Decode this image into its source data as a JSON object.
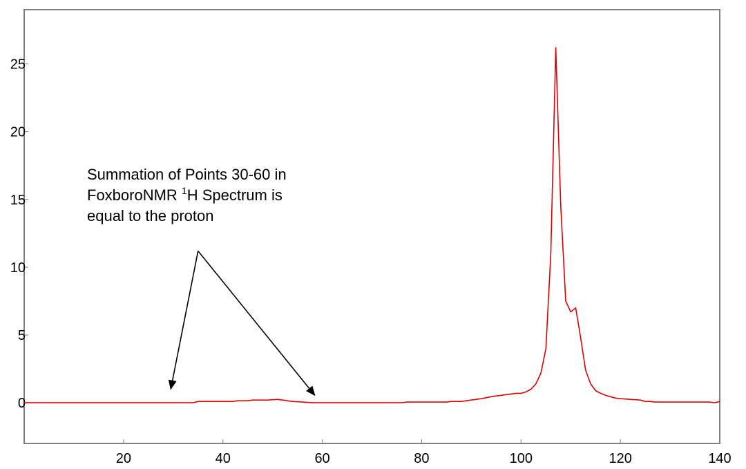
{
  "chart_data": {
    "type": "line",
    "title": "",
    "xlabel": "",
    "ylabel": "",
    "xlim": [
      0,
      140
    ],
    "ylim": [
      -3,
      29
    ],
    "grid": false,
    "x_ticks": [
      {
        "value": 20,
        "label": "20"
      },
      {
        "value": 40,
        "label": "40"
      },
      {
        "value": 60,
        "label": "60"
      },
      {
        "value": 80,
        "label": "80"
      },
      {
        "value": 100,
        "label": "100"
      },
      {
        "value": 120,
        "label": "120"
      },
      {
        "value": 140,
        "label": "140"
      }
    ],
    "y_ticks": [
      {
        "value": 0,
        "label": "0"
      },
      {
        "value": 5,
        "label": "5"
      },
      {
        "value": 10,
        "label": "10"
      },
      {
        "value": 15,
        "label": "15"
      },
      {
        "value": 20,
        "label": "20"
      },
      {
        "value": 25,
        "label": "25"
      }
    ],
    "series": [
      {
        "color": "#e00000",
        "points": [
          [
            0,
            0.0
          ],
          [
            10,
            0.0
          ],
          [
            20,
            0.0
          ],
          [
            30,
            0.0
          ],
          [
            34,
            0.0
          ],
          [
            35,
            0.1
          ],
          [
            40,
            0.1
          ],
          [
            42,
            0.1
          ],
          [
            43,
            0.15
          ],
          [
            45,
            0.15
          ],
          [
            46,
            0.2
          ],
          [
            49,
            0.2
          ],
          [
            51,
            0.25
          ],
          [
            52,
            0.2
          ],
          [
            54,
            0.1
          ],
          [
            56,
            0.05
          ],
          [
            58,
            0.0
          ],
          [
            65,
            0.0
          ],
          [
            70,
            0.0
          ],
          [
            76,
            0.0
          ],
          [
            77,
            0.05
          ],
          [
            80,
            0.05
          ],
          [
            85,
            0.05
          ],
          [
            86,
            0.1
          ],
          [
            88,
            0.1
          ],
          [
            90,
            0.2
          ],
          [
            92,
            0.3
          ],
          [
            94,
            0.45
          ],
          [
            96,
            0.55
          ],
          [
            98,
            0.65
          ],
          [
            99,
            0.7
          ],
          [
            100,
            0.7
          ],
          [
            101,
            0.8
          ],
          [
            102,
            1.0
          ],
          [
            103,
            1.4
          ],
          [
            104,
            2.2
          ],
          [
            105,
            4.0
          ],
          [
            106,
            11.0
          ],
          [
            107,
            26.2
          ],
          [
            108,
            14.5
          ],
          [
            109,
            7.5
          ],
          [
            110,
            6.7
          ],
          [
            111,
            7.0
          ],
          [
            112,
            4.8
          ],
          [
            113,
            2.4
          ],
          [
            114,
            1.4
          ],
          [
            115,
            0.9
          ],
          [
            116,
            0.7
          ],
          [
            117,
            0.55
          ],
          [
            118,
            0.45
          ],
          [
            119,
            0.35
          ],
          [
            120,
            0.3
          ],
          [
            122,
            0.25
          ],
          [
            124,
            0.2
          ],
          [
            125,
            0.1
          ],
          [
            126,
            0.1
          ],
          [
            127,
            0.05
          ],
          [
            130,
            0.05
          ],
          [
            135,
            0.05
          ],
          [
            138,
            0.05
          ],
          [
            139,
            0.0
          ],
          [
            140,
            0.1
          ]
        ]
      }
    ],
    "annotation": {
      "lines": [
        {
          "pre": "Summation of Points 30-60 in",
          "sup": "",
          "post": ""
        },
        {
          "pre": "FoxboroNMR ",
          "sup": "1",
          "post": "H Spectrum is"
        },
        {
          "pre": "equal to the proton",
          "sup": "",
          "post": ""
        }
      ],
      "arrow_origin": [
        35,
        11.2
      ],
      "arrow_targets": [
        [
          29.5,
          1.0
        ],
        [
          58.5,
          0.55
        ]
      ]
    }
  }
}
